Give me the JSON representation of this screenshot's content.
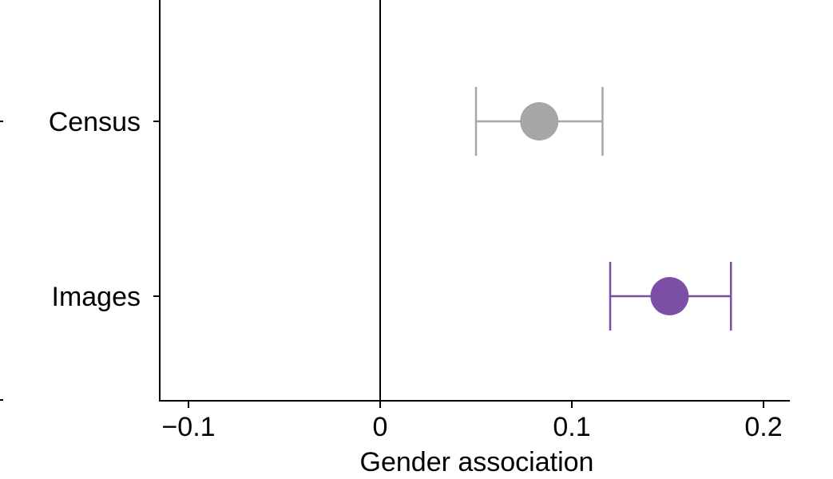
{
  "chart_data": {
    "type": "scatter",
    "title": "",
    "xlabel": "Gender association",
    "ylabel": "",
    "xlim": [
      -0.115,
      0.215
    ],
    "xticks": [
      {
        "value": -0.1,
        "label": "−0.1"
      },
      {
        "value": 0,
        "label": "0"
      },
      {
        "value": 0.1,
        "label": "0.1"
      },
      {
        "value": 0.2,
        "label": "0.2"
      }
    ],
    "reference_line": 0,
    "grid": false,
    "legend": "none",
    "series": [
      {
        "category": "Census",
        "value": 0.083,
        "ci_low": 0.05,
        "ci_high": 0.116,
        "color": "#a6a6a6"
      },
      {
        "category": "Images",
        "value": 0.151,
        "ci_low": 0.12,
        "ci_high": 0.183,
        "color": "#7d4ea6"
      }
    ]
  }
}
